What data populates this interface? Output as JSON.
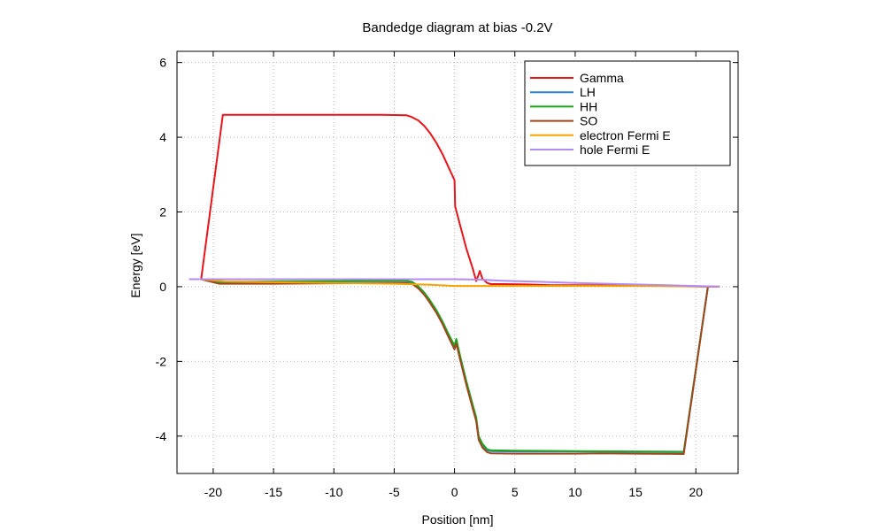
{
  "chart_data": {
    "type": "line",
    "title": "Bandedge diagram at bias -0.2V",
    "xlabel": "Position [nm]",
    "ylabel": "Energy [eV]",
    "xlim": [
      -23,
      23.5
    ],
    "ylim": [
      -5,
      6.3
    ],
    "xticks": [
      -20,
      -15,
      -10,
      -5,
      0,
      5,
      10,
      15,
      20
    ],
    "yticks": [
      -4,
      -2,
      0,
      2,
      4,
      6
    ],
    "grid": true,
    "legend_position": "top-right",
    "series": [
      {
        "name": "Gamma",
        "color": "#e8141a",
        "points": [
          [
            -22,
            0.2
          ],
          [
            -21,
            0.2
          ],
          [
            -19.2,
            4.6
          ],
          [
            -15,
            4.6
          ],
          [
            -10,
            4.6
          ],
          [
            -6,
            4.6
          ],
          [
            -4,
            4.59
          ],
          [
            -3.6,
            4.55
          ],
          [
            -3,
            4.45
          ],
          [
            -2.5,
            4.3
          ],
          [
            -2,
            4.1
          ],
          [
            -1.5,
            3.85
          ],
          [
            -1,
            3.55
          ],
          [
            -0.5,
            3.2
          ],
          [
            0,
            2.85
          ],
          [
            0.05,
            2.15
          ],
          [
            0.5,
            1.6
          ],
          [
            1,
            1.0
          ],
          [
            1.5,
            0.5
          ],
          [
            1.8,
            0.15
          ],
          [
            2.1,
            0.42
          ],
          [
            2.3,
            0.22
          ],
          [
            2.7,
            0.1
          ],
          [
            3,
            0.07
          ],
          [
            4,
            0.07
          ],
          [
            6,
            0.06
          ],
          [
            8,
            0.04
          ],
          [
            12,
            0.04
          ],
          [
            16,
            0.03
          ],
          [
            19,
            0.01
          ],
          [
            21,
            0.0
          ],
          [
            22,
            0.0
          ]
        ]
      },
      {
        "name": "LH",
        "color": "#2b7fd6",
        "points": [
          [
            -22,
            0.2
          ],
          [
            -21,
            0.2
          ],
          [
            -19.5,
            0.12
          ],
          [
            -15,
            0.13
          ],
          [
            -10,
            0.14
          ],
          [
            -5,
            0.15
          ],
          [
            -4,
            0.15
          ],
          [
            -3.5,
            0.12
          ],
          [
            -3,
            0.0
          ],
          [
            -2.5,
            -0.17
          ],
          [
            -2,
            -0.4
          ],
          [
            -1.5,
            -0.65
          ],
          [
            -1,
            -0.95
          ],
          [
            -0.5,
            -1.3
          ],
          [
            0,
            -1.62
          ],
          [
            0.15,
            -1.45
          ],
          [
            0.5,
            -1.95
          ],
          [
            1,
            -2.6
          ],
          [
            1.5,
            -3.2
          ],
          [
            1.8,
            -3.55
          ],
          [
            2,
            -4.05
          ],
          [
            2.3,
            -4.25
          ],
          [
            2.7,
            -4.38
          ],
          [
            3,
            -4.4
          ],
          [
            5,
            -4.41
          ],
          [
            10,
            -4.41
          ],
          [
            15,
            -4.42
          ],
          [
            19,
            -4.43
          ],
          [
            21,
            0.0
          ]
        ]
      },
      {
        "name": "HH",
        "color": "#1ea61e",
        "points": [
          [
            -22,
            0.2
          ],
          [
            -21,
            0.2
          ],
          [
            -19.5,
            0.13
          ],
          [
            -15,
            0.14
          ],
          [
            -10,
            0.15
          ],
          [
            -5,
            0.16
          ],
          [
            -4,
            0.16
          ],
          [
            -3.5,
            0.13
          ],
          [
            -3,
            0.01
          ],
          [
            -2.5,
            -0.16
          ],
          [
            -2,
            -0.38
          ],
          [
            -1.5,
            -0.63
          ],
          [
            -1,
            -0.93
          ],
          [
            -0.5,
            -1.27
          ],
          [
            0,
            -1.58
          ],
          [
            0.15,
            -1.4
          ],
          [
            0.5,
            -1.9
          ],
          [
            1,
            -2.55
          ],
          [
            1.5,
            -3.15
          ],
          [
            1.8,
            -3.5
          ],
          [
            2,
            -4.0
          ],
          [
            2.3,
            -4.2
          ],
          [
            2.7,
            -4.35
          ],
          [
            3,
            -4.38
          ],
          [
            5,
            -4.39
          ],
          [
            10,
            -4.4
          ],
          [
            15,
            -4.41
          ],
          [
            19,
            -4.42
          ],
          [
            21,
            0.0
          ]
        ]
      },
      {
        "name": "SO",
        "color": "#a0461e",
        "points": [
          [
            -22,
            0.2
          ],
          [
            -21,
            0.2
          ],
          [
            -19.5,
            0.08
          ],
          [
            -15,
            0.08
          ],
          [
            -10,
            0.09
          ],
          [
            -5,
            0.1
          ],
          [
            -4,
            0.1
          ],
          [
            -3.5,
            0.07
          ],
          [
            -3,
            -0.05
          ],
          [
            -2.5,
            -0.22
          ],
          [
            -2,
            -0.45
          ],
          [
            -1.5,
            -0.7
          ],
          [
            -1,
            -1.0
          ],
          [
            -0.5,
            -1.35
          ],
          [
            0,
            -1.68
          ],
          [
            0.15,
            -1.52
          ],
          [
            0.5,
            -2.0
          ],
          [
            1,
            -2.65
          ],
          [
            1.5,
            -3.25
          ],
          [
            1.8,
            -3.6
          ],
          [
            2,
            -4.1
          ],
          [
            2.3,
            -4.3
          ],
          [
            2.7,
            -4.43
          ],
          [
            3,
            -4.46
          ],
          [
            5,
            -4.47
          ],
          [
            10,
            -4.47
          ],
          [
            12,
            -4.46
          ],
          [
            15,
            -4.47
          ],
          [
            19,
            -4.48
          ],
          [
            21,
            0.0
          ]
        ]
      },
      {
        "name": "electron Fermi E",
        "color": "#f5a300",
        "points": [
          [
            -22,
            0.2
          ],
          [
            -21,
            0.2
          ],
          [
            -19,
            0.14
          ],
          [
            -15,
            0.12
          ],
          [
            -10,
            0.1
          ],
          [
            -5,
            0.08
          ],
          [
            -2,
            0.05
          ],
          [
            0,
            0.02
          ],
          [
            2,
            0.02
          ],
          [
            5,
            0.02
          ],
          [
            10,
            0.02
          ],
          [
            15,
            0.02
          ],
          [
            20,
            0.01
          ],
          [
            22,
            0.0
          ]
        ]
      },
      {
        "name": "hole Fermi E",
        "color": "#b48cf0",
        "points": [
          [
            -22,
            0.2
          ],
          [
            -21,
            0.2
          ],
          [
            -15,
            0.2
          ],
          [
            -10,
            0.2
          ],
          [
            -5,
            0.2
          ],
          [
            0,
            0.2
          ],
          [
            2,
            0.19
          ],
          [
            4,
            0.16
          ],
          [
            6,
            0.14
          ],
          [
            10,
            0.1
          ],
          [
            15,
            0.06
          ],
          [
            20,
            0.02
          ],
          [
            22,
            0.0
          ]
        ]
      }
    ]
  }
}
